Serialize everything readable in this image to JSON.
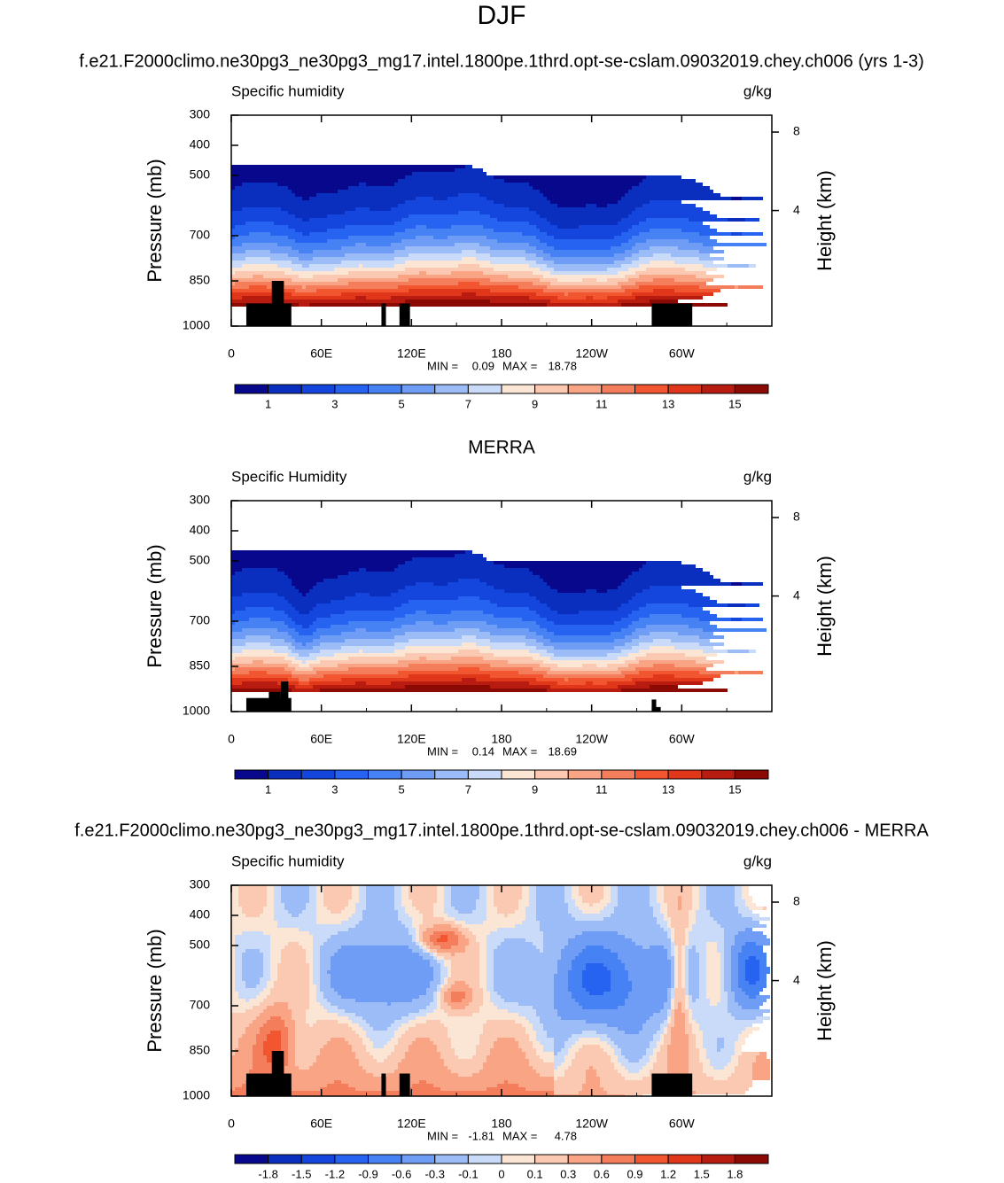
{
  "title": "DJF",
  "chart_data": [
    {
      "type": "contour",
      "title": "f.e21.F2000climo.ne30pg3_ne30pg3_mg17.intel.1800pe.1thrd.opt-se-cslam.09032019.chey.ch006 (yrs 1-3)",
      "left_string": "Specific humidity",
      "right_string": "g/kg",
      "ylabel": "Pressure (mb)",
      "y2label": "Height (km)",
      "xlim": [
        0,
        360
      ],
      "xticks": [
        0,
        {
          "value": 60,
          "label": "60E"
        },
        {
          "value": 120,
          "label": "120E"
        },
        180,
        {
          "value": 240,
          "label": "120W"
        },
        {
          "value": 300,
          "label": "60W"
        }
      ],
      "ylim": [
        300,
        1000
      ],
      "yticks": [
        300,
        400,
        500,
        700,
        850,
        1000
      ],
      "y2ticks": [
        4,
        8
      ],
      "min_label": "MIN =",
      "min": 0.09,
      "max_label": "MAX =",
      "max": 18.78,
      "colorbar": {
        "lim": [
          0,
          16
        ],
        "ticks": [
          1,
          3,
          5,
          7,
          9,
          11,
          13,
          15
        ],
        "colors": [
          "#08088c",
          "#0a2fbf",
          "#1446dd",
          "#2563f0",
          "#4682f3",
          "#6f9cf5",
          "#9cbcf7",
          "#c9dbf9",
          "#fbe6d6",
          "#fbc8b1",
          "#f8a485",
          "#f47e5b",
          "#f25630",
          "#e0361a",
          "#b81c10",
          "#8b0a04"
        ]
      }
    },
    {
      "type": "contour",
      "title": "MERRA",
      "left_string": "Specific Humidity",
      "right_string": "g/kg",
      "ylabel": "Pressure (mb)",
      "y2label": "Height (km)",
      "xlim": [
        0,
        360
      ],
      "xticks": [
        0,
        {
          "value": 60,
          "label": "60E"
        },
        {
          "value": 120,
          "label": "120E"
        },
        180,
        {
          "value": 240,
          "label": "120W"
        },
        {
          "value": 300,
          "label": "60W"
        }
      ],
      "ylim": [
        300,
        1000
      ],
      "yticks": [
        300,
        400,
        500,
        700,
        850,
        1000
      ],
      "y2ticks": [
        4,
        8
      ],
      "min_label": "MIN =",
      "min": 0.14,
      "max_label": "MAX =",
      "max": 18.69,
      "colorbar": {
        "lim": [
          0,
          16
        ],
        "ticks": [
          1,
          3,
          5,
          7,
          9,
          11,
          13,
          15
        ],
        "colors": [
          "#08088c",
          "#0a2fbf",
          "#1446dd",
          "#2563f0",
          "#4682f3",
          "#6f9cf5",
          "#9cbcf7",
          "#c9dbf9",
          "#fbe6d6",
          "#fbc8b1",
          "#f8a485",
          "#f47e5b",
          "#f25630",
          "#e0361a",
          "#b81c10",
          "#8b0a04"
        ]
      }
    },
    {
      "type": "contour",
      "title": "f.e21.F2000climo.ne30pg3_ne30pg3_mg17.intel.1800pe.1thrd.opt-se-cslam.09032019.chey.ch006 - MERRA",
      "left_string": "Specific humidity",
      "right_string": "g/kg",
      "ylabel": "Pressure (mb)",
      "y2label": "Height (km)",
      "xlim": [
        0,
        360
      ],
      "xticks": [
        0,
        {
          "value": 60,
          "label": "60E"
        },
        {
          "value": 120,
          "label": "120E"
        },
        180,
        {
          "value": 240,
          "label": "120W"
        },
        {
          "value": 300,
          "label": "60W"
        }
      ],
      "ylim": [
        300,
        1000
      ],
      "yticks": [
        300,
        400,
        500,
        700,
        850,
        1000
      ],
      "y2ticks": [
        4,
        8
      ],
      "min_label": "MIN =",
      "min": -1.81,
      "max_label": "MAX =",
      "max": 4.78,
      "colorbar": {
        "ticks": [
          -1.8,
          -1.5,
          -1.2,
          -0.9,
          -0.6,
          -0.3,
          -0.1,
          0,
          0.1,
          0.3,
          0.6,
          0.9,
          1.2,
          1.5,
          1.8
        ],
        "colors": [
          "#08088c",
          "#0a2fbf",
          "#1446dd",
          "#2563f0",
          "#4682f3",
          "#6f9cf5",
          "#9cbcf7",
          "#c9dbf9",
          "#fbe6d6",
          "#fbc8b1",
          "#f8a485",
          "#f47e5b",
          "#f25630",
          "#e0361a",
          "#b81c10",
          "#8b0a04"
        ]
      }
    }
  ]
}
